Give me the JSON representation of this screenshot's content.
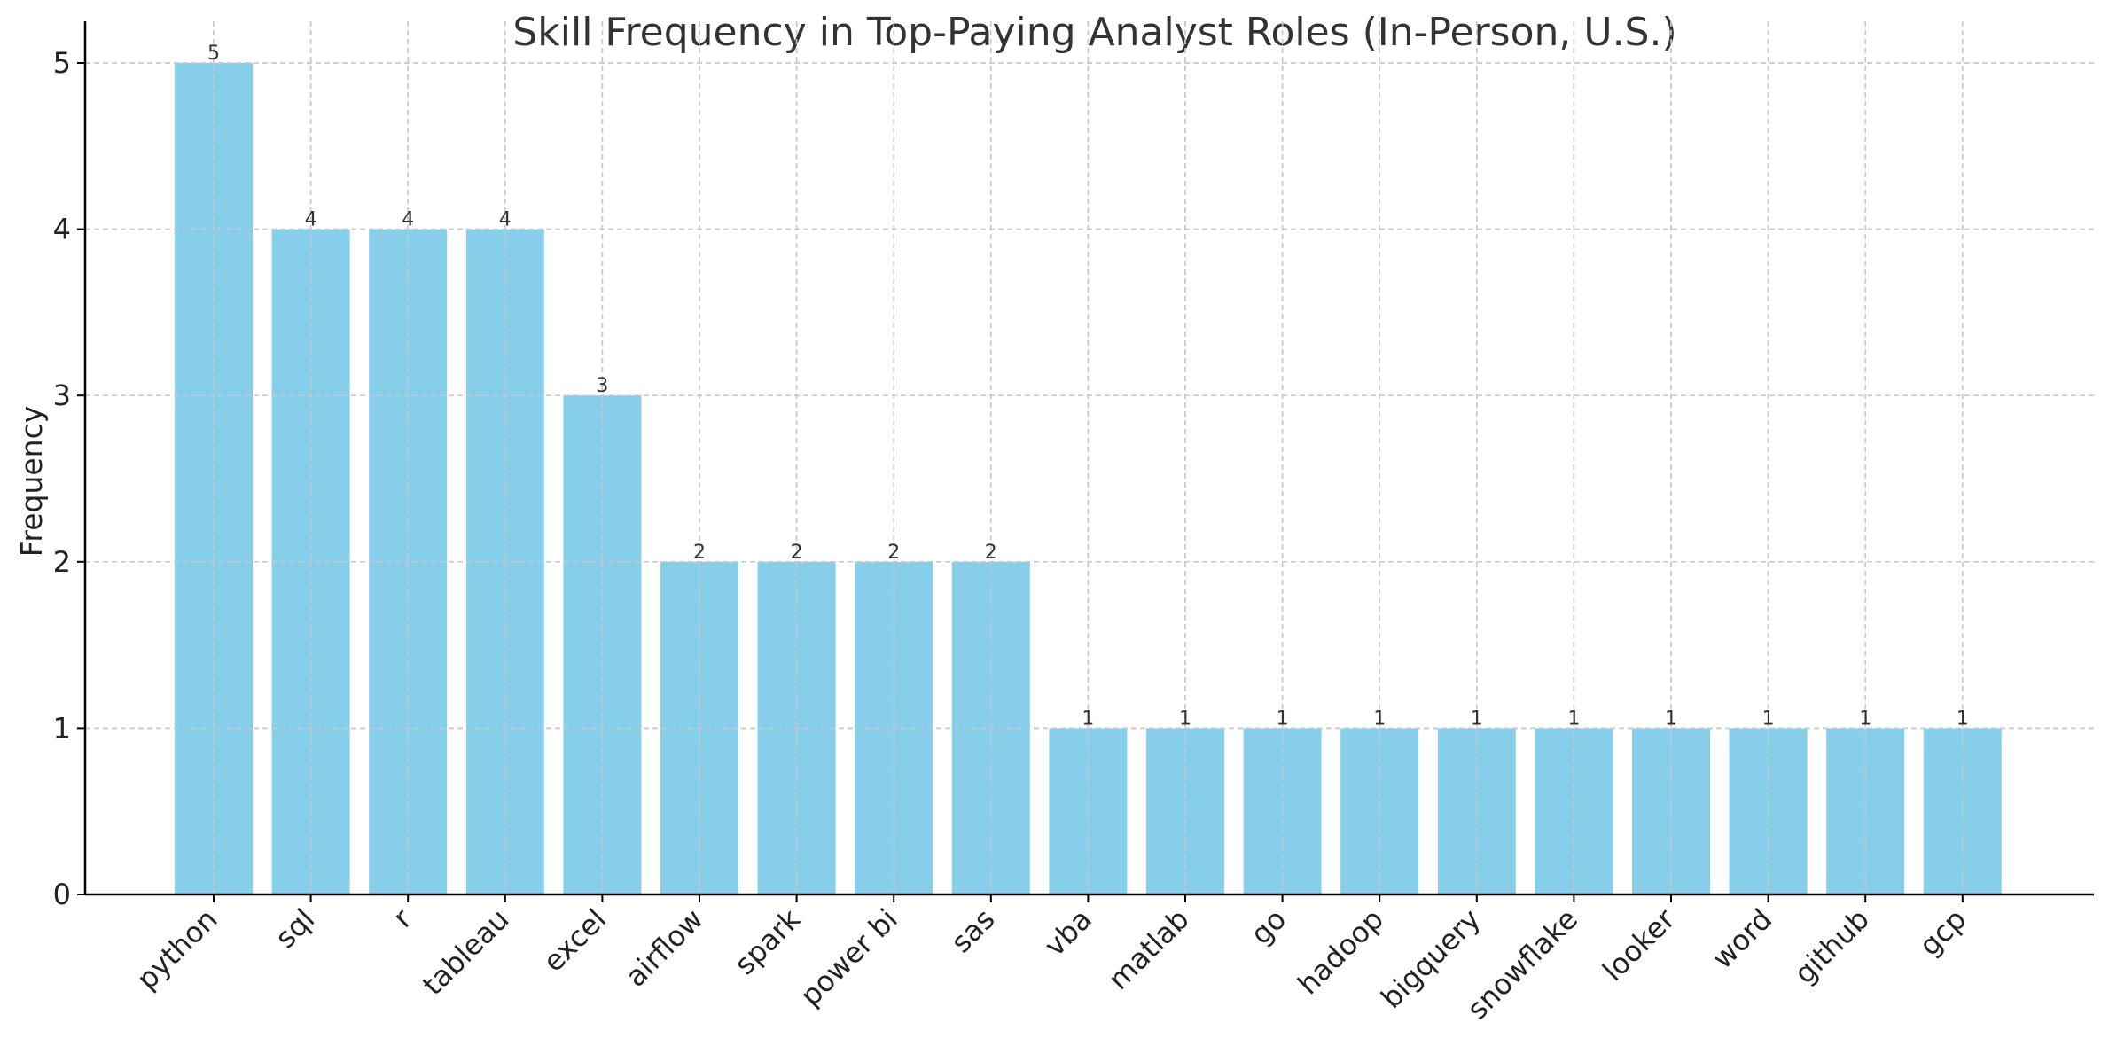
{
  "chart_data": {
    "type": "bar",
    "title": "Skill Frequency in Top-Paying Analyst Roles (In-Person, U.S.)",
    "xlabel": "",
    "ylabel": "Frequency",
    "categories": [
      "python",
      "sql",
      "r",
      "tableau",
      "excel",
      "airflow",
      "spark",
      "power bi",
      "sas",
      "vba",
      "matlab",
      "go",
      "hadoop",
      "bigquery",
      "snowflake",
      "looker",
      "word",
      "github",
      "gcp"
    ],
    "values": [
      5,
      4,
      4,
      4,
      3,
      2,
      2,
      2,
      2,
      1,
      1,
      1,
      1,
      1,
      1,
      1,
      1,
      1,
      1
    ],
    "ylim": [
      0,
      5.25
    ],
    "yticks": [
      0,
      1,
      2,
      3,
      4,
      5
    ],
    "grid": true,
    "bar_color": "#87CEEB",
    "data_labels": true
  }
}
